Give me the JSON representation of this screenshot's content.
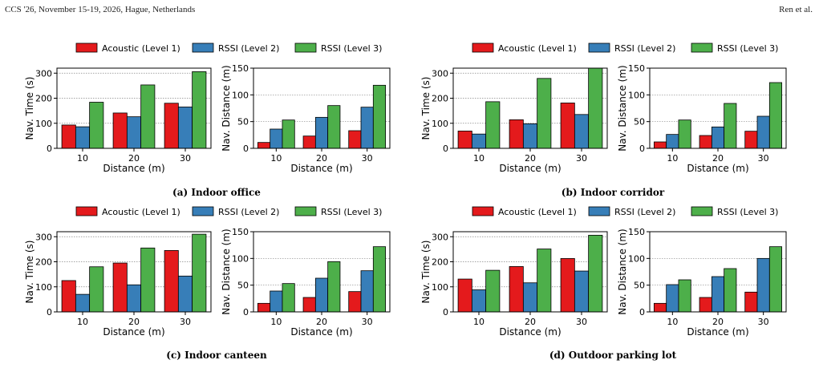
{
  "header": {
    "left": "CCS '26, November 15-19, 2026, Hague, Netherlands",
    "right": "Ren et al."
  },
  "colors": {
    "level1": "#e41a1c",
    "level2": "#377eb8",
    "level3": "#4daf4a"
  },
  "chart_data": [
    {
      "panel": "a",
      "caption": "(a) Indoor office",
      "legend": [
        "Acoustic (Level 1)",
        "RSSI (Level 2)",
        "RSSI (Level 3)"
      ],
      "legend_placement": "top",
      "charts": [
        {
          "type": "bar",
          "xlabel": "Distance (m)",
          "ylabel": "Nav. Time (s)",
          "categories": [
            "10",
            "20",
            "30"
          ],
          "ylim": [
            0,
            320
          ],
          "yticks": [
            0,
            100,
            200,
            300
          ],
          "grid": "horizontal-dotted",
          "series": [
            {
              "name": "Acoustic (Level 1)",
              "values": [
                93,
                141,
                180
              ]
            },
            {
              "name": "RSSI (Level 2)",
              "values": [
                86,
                126,
                165
              ]
            },
            {
              "name": "RSSI (Level 3)",
              "values": [
                184,
                253,
                306
              ]
            }
          ]
        },
        {
          "type": "bar",
          "xlabel": "Distance (m)",
          "ylabel": "Nav. Distance (m)",
          "categories": [
            "10",
            "20",
            "30"
          ],
          "ylim": [
            0,
            150
          ],
          "yticks": [
            0,
            50,
            100,
            150
          ],
          "grid": "horizontal-dotted",
          "series": [
            {
              "name": "Acoustic (Level 1)",
              "values": [
                11,
                23,
                33
              ]
            },
            {
              "name": "RSSI (Level 2)",
              "values": [
                36,
                58,
                77
              ]
            },
            {
              "name": "RSSI (Level 3)",
              "values": [
                53,
                80,
                118
              ]
            }
          ]
        }
      ]
    },
    {
      "panel": "b",
      "caption": "(b) Indoor corridor",
      "legend": [
        "Acoustic (Level 1)",
        "RSSI (Level 2)",
        "RSSI (Level 3)"
      ],
      "legend_placement": "top",
      "charts": [
        {
          "type": "bar",
          "xlabel": "Distance (m)",
          "ylabel": "Nav. Time (s)",
          "categories": [
            "10",
            "20",
            "30"
          ],
          "ylim": [
            0,
            320
          ],
          "yticks": [
            0,
            100,
            200,
            300
          ],
          "grid": "horizontal-dotted",
          "series": [
            {
              "name": "Acoustic (Level 1)",
              "values": [
                69,
                114,
                181
              ]
            },
            {
              "name": "RSSI (Level 2)",
              "values": [
                57,
                98,
                135
              ]
            },
            {
              "name": "RSSI (Level 3)",
              "values": [
                186,
                279,
                320
              ]
            }
          ]
        },
        {
          "type": "bar",
          "xlabel": "Distance (m)",
          "ylabel": "Nav. Distance (m)",
          "categories": [
            "10",
            "20",
            "30"
          ],
          "ylim": [
            0,
            150
          ],
          "yticks": [
            0,
            50,
            100,
            150
          ],
          "grid": "horizontal-dotted",
          "series": [
            {
              "name": "Acoustic (Level 1)",
              "values": [
                12,
                24,
                32
              ]
            },
            {
              "name": "RSSI (Level 2)",
              "values": [
                26,
                40,
                60
              ]
            },
            {
              "name": "RSSI (Level 3)",
              "values": [
                53,
                84,
                123
              ]
            }
          ]
        }
      ]
    },
    {
      "panel": "c",
      "caption": "(c) Indoor canteen",
      "legend": [
        "Acoustic (Level 1)",
        "RSSI (Level 2)",
        "RSSI (Level 3)"
      ],
      "legend_placement": "top",
      "charts": [
        {
          "type": "bar",
          "xlabel": "Distance (m)",
          "ylabel": "Nav. Time (s)",
          "categories": [
            "10",
            "20",
            "30"
          ],
          "ylim": [
            0,
            320
          ],
          "yticks": [
            0,
            100,
            200,
            300
          ],
          "grid": "horizontal-dotted",
          "series": [
            {
              "name": "Acoustic (Level 1)",
              "values": [
                125,
                195,
                245
              ]
            },
            {
              "name": "RSSI (Level 2)",
              "values": [
                70,
                108,
                143
              ]
            },
            {
              "name": "RSSI (Level 3)",
              "values": [
                180,
                255,
                310
              ]
            }
          ]
        },
        {
          "type": "bar",
          "xlabel": "Distance (m)",
          "ylabel": "Nav. Distance (m)",
          "categories": [
            "10",
            "20",
            "30"
          ],
          "ylim": [
            0,
            150
          ],
          "yticks": [
            0,
            50,
            100,
            150
          ],
          "grid": "horizontal-dotted",
          "series": [
            {
              "name": "Acoustic (Level 1)",
              "values": [
                16,
                27,
                38
              ]
            },
            {
              "name": "RSSI (Level 2)",
              "values": [
                39,
                63,
                77
              ]
            },
            {
              "name": "RSSI (Level 3)",
              "values": [
                53,
                94,
                122
              ]
            }
          ]
        }
      ]
    },
    {
      "panel": "d",
      "caption": "(d) Outdoor parking lot",
      "legend": [
        "Acoustic (Level 1)",
        "RSSI (Level 2)",
        "RSSI (Level 3)"
      ],
      "legend_placement": "top",
      "charts": [
        {
          "type": "bar",
          "xlabel": "Distance (m)",
          "ylabel": "Nav. Time (s)",
          "categories": [
            "10",
            "20",
            "30"
          ],
          "ylim": [
            0,
            320
          ],
          "yticks": [
            0,
            100,
            200,
            300
          ],
          "grid": "horizontal-dotted",
          "series": [
            {
              "name": "Acoustic (Level 1)",
              "values": [
                131,
                181,
                213
              ]
            },
            {
              "name": "RSSI (Level 2)",
              "values": [
                88,
                116,
                163
              ]
            },
            {
              "name": "RSSI (Level 3)",
              "values": [
                166,
                251,
                306
              ]
            }
          ]
        },
        {
          "type": "bar",
          "xlabel": "Distance (m)",
          "ylabel": "Nav. Distance (m)",
          "categories": [
            "10",
            "20",
            "30"
          ],
          "ylim": [
            0,
            150
          ],
          "yticks": [
            0,
            50,
            100,
            150
          ],
          "grid": "horizontal-dotted",
          "series": [
            {
              "name": "Acoustic (Level 1)",
              "values": [
                16,
                27,
                37
              ]
            },
            {
              "name": "RSSI (Level 2)",
              "values": [
                51,
                66,
                100
              ]
            },
            {
              "name": "RSSI (Level 3)",
              "values": [
                60,
                81,
                122
              ]
            }
          ]
        }
      ]
    }
  ]
}
